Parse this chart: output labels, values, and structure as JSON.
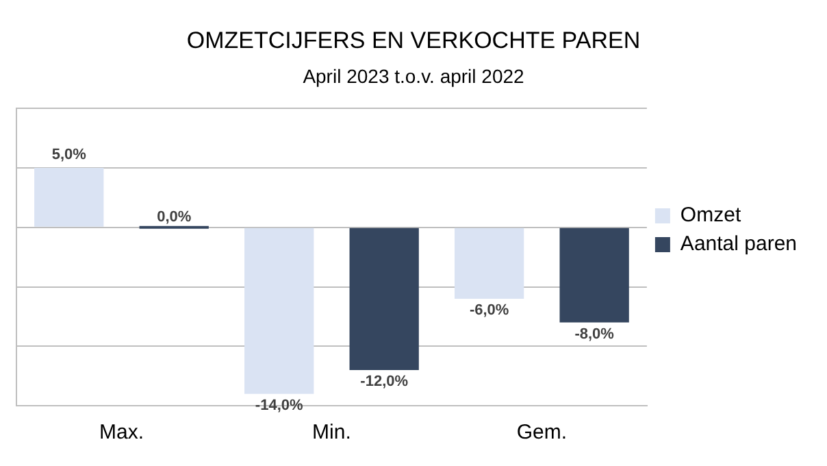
{
  "chart_data": {
    "type": "bar",
    "title": "OMZETCIJFERS EN VERKOCHTE PAREN",
    "subtitle": "April 2023 t.o.v. april 2022",
    "categories": [
      "Max.",
      "Min.",
      "Gem."
    ],
    "series": [
      {
        "name": "Omzet",
        "color": "#dae3f3",
        "values": [
          5,
          -14,
          -6
        ],
        "value_labels": [
          "5,0%",
          "-14,0%",
          "-6,0%"
        ]
      },
      {
        "name": "Aantal paren",
        "color": "#35465f",
        "values": [
          0,
          -12,
          -8
        ],
        "value_labels": [
          "0,0%",
          "-12,0%",
          "-8,0%"
        ]
      }
    ],
    "ylim": [
      -15,
      10
    ],
    "yticks": [
      {
        "value": -15,
        "label": null
      },
      {
        "value": -10,
        "label": null
      },
      {
        "value": -5,
        "label": null
      },
      {
        "value": 0,
        "label": null
      },
      {
        "value": 5,
        "label": null
      },
      {
        "value": 10,
        "label": null
      }
    ],
    "tick_labels": "x",
    "grid": "y",
    "legend": "right"
  }
}
